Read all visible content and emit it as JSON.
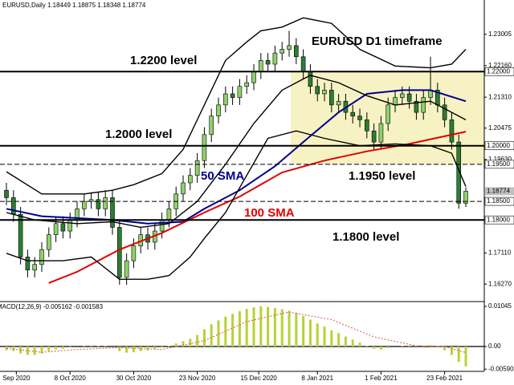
{
  "chart_data": [
    {
      "type": "candlestick",
      "title": "EURUSD,Daily  1.18449 1.18875 1.18348 1.18774",
      "bull_color": "#8fd16a",
      "bear_color": "#2e7d32",
      "candles": [
        [
          1.188,
          1.19,
          1.184,
          1.186
        ],
        [
          1.186,
          1.188,
          1.1795,
          1.1815
        ],
        [
          1.1815,
          1.1835,
          1.168,
          1.17
        ],
        [
          1.17,
          1.172,
          1.1645,
          1.1665
        ],
        [
          1.1665,
          1.17,
          1.1645,
          1.168
        ],
        [
          1.168,
          1.174,
          1.166,
          1.172
        ],
        [
          1.172,
          1.178,
          1.17,
          1.176
        ],
        [
          1.176,
          1.181,
          1.174,
          1.179
        ],
        [
          1.179,
          1.181,
          1.175,
          1.177
        ],
        [
          1.177,
          1.182,
          1.175,
          1.18
        ],
        [
          1.18,
          1.185,
          1.178,
          1.183
        ],
        [
          1.183,
          1.187,
          1.181,
          1.185
        ],
        [
          1.185,
          1.1875,
          1.183,
          1.1855
        ],
        [
          1.1855,
          1.1875,
          1.181,
          1.183
        ],
        [
          1.183,
          1.188,
          1.181,
          1.186
        ],
        [
          1.186,
          1.188,
          1.176,
          1.178
        ],
        [
          1.178,
          1.18,
          1.1625,
          1.1645
        ],
        [
          1.1645,
          1.171,
          1.1625,
          1.169
        ],
        [
          1.169,
          1.175,
          1.167,
          1.173
        ],
        [
          1.173,
          1.178,
          1.171,
          1.176
        ],
        [
          1.176,
          1.178,
          1.172,
          1.174
        ],
        [
          1.174,
          1.179,
          1.172,
          1.177
        ],
        [
          1.177,
          1.182,
          1.175,
          1.18
        ],
        [
          1.18,
          1.185,
          1.178,
          1.183
        ],
        [
          1.183,
          1.189,
          1.181,
          1.187
        ],
        [
          1.187,
          1.192,
          1.185,
          1.19
        ],
        [
          1.19,
          1.194,
          1.188,
          1.192
        ],
        [
          1.192,
          1.198,
          1.19,
          1.196
        ],
        [
          1.196,
          1.205,
          1.194,
          1.203
        ],
        [
          1.203,
          1.21,
          1.201,
          1.208
        ],
        [
          1.208,
          1.213,
          1.206,
          1.211
        ],
        [
          1.211,
          1.216,
          1.209,
          1.214
        ],
        [
          1.214,
          1.216,
          1.211,
          1.213
        ],
        [
          1.213,
          1.218,
          1.211,
          1.216
        ],
        [
          1.216,
          1.219,
          1.214,
          1.217
        ],
        [
          1.217,
          1.222,
          1.215,
          1.22
        ],
        [
          1.22,
          1.225,
          1.218,
          1.223
        ],
        [
          1.223,
          1.225,
          1.22,
          1.222
        ],
        [
          1.222,
          1.227,
          1.22,
          1.225
        ],
        [
          1.225,
          1.228,
          1.223,
          1.226
        ],
        [
          1.226,
          1.231,
          1.224,
          1.227
        ],
        [
          1.227,
          1.229,
          1.222,
          1.224
        ],
        [
          1.224,
          1.226,
          1.218,
          1.22
        ],
        [
          1.22,
          1.222,
          1.214,
          1.216
        ],
        [
          1.216,
          1.218,
          1.212,
          1.214
        ],
        [
          1.214,
          1.217,
          1.212,
          1.215
        ],
        [
          1.215,
          1.217,
          1.209,
          1.211
        ],
        [
          1.211,
          1.214,
          1.209,
          1.212
        ],
        [
          1.212,
          1.214,
          1.207,
          1.209
        ],
        [
          1.209,
          1.211,
          1.206,
          1.208
        ],
        [
          1.208,
          1.21,
          1.205,
          1.207
        ],
        [
          1.207,
          1.209,
          1.202,
          1.204
        ],
        [
          1.204,
          1.206,
          1.199,
          1.201
        ],
        [
          1.201,
          1.208,
          1.199,
          1.206
        ],
        [
          1.206,
          1.213,
          1.204,
          1.211
        ],
        [
          1.211,
          1.215,
          1.209,
          1.213
        ],
        [
          1.213,
          1.216,
          1.211,
          1.214
        ],
        [
          1.214,
          1.216,
          1.21,
          1.212
        ],
        [
          1.212,
          1.214,
          1.207,
          1.209
        ],
        [
          1.209,
          1.215,
          1.207,
          1.213
        ],
        [
          1.213,
          1.224,
          1.211,
          1.215
        ],
        [
          1.215,
          1.217,
          1.209,
          1.211
        ],
        [
          1.211,
          1.213,
          1.205,
          1.207
        ],
        [
          1.207,
          1.209,
          1.199,
          1.201
        ],
        [
          1.201,
          1.203,
          1.183,
          1.1845
        ],
        [
          1.18449,
          1.18875,
          1.18348,
          1.18774
        ]
      ],
      "series": [
        {
          "name": "50 SMA",
          "color": "#00008b",
          "x": [
            0,
            5,
            10,
            15,
            20,
            25,
            28,
            33,
            38,
            42,
            47,
            51,
            56,
            60,
            65
          ],
          "values": [
            1.183,
            1.181,
            1.1805,
            1.18,
            1.179,
            1.1795,
            1.183,
            1.188,
            1.1945,
            1.201,
            1.209,
            1.214,
            1.215,
            1.215,
            1.212
          ]
        },
        {
          "name": "100 SMA",
          "color": "#e00000",
          "x": [
            6,
            10,
            16,
            22,
            28,
            33,
            39,
            45,
            51,
            57,
            65
          ],
          "values": [
            1.163,
            1.166,
            1.172,
            1.1765,
            1.182,
            1.1863,
            1.1928,
            1.196,
            1.1985,
            1.2005,
            1.2038
          ]
        },
        {
          "color": "#000000",
          "x": [
            0,
            5,
            11,
            15,
            18,
            22,
            25,
            28,
            31,
            34,
            36,
            39,
            42,
            46,
            50,
            55,
            60,
            63,
            65
          ],
          "values": [
            1.193,
            1.187,
            1.187,
            1.188,
            1.1895,
            1.1925,
            1.199,
            1.211,
            1.223,
            1.228,
            1.231,
            1.232,
            1.2345,
            1.233,
            1.226,
            1.2215,
            1.221,
            1.222,
            1.226
          ]
        },
        {
          "color": "#000000",
          "x": [
            0,
            4,
            10,
            15,
            19,
            23,
            27,
            31,
            35,
            39,
            43,
            47,
            51,
            55,
            60,
            65
          ],
          "values": [
            1.182,
            1.18,
            1.179,
            1.1795,
            1.178,
            1.179,
            1.185,
            1.195,
            1.206,
            1.215,
            1.219,
            1.217,
            1.2135,
            1.211,
            1.212,
            1.207
          ]
        },
        {
          "color": "#000000",
          "x": [
            0,
            3,
            8,
            12,
            16,
            20,
            23,
            26,
            28,
            31,
            34,
            37,
            41,
            45,
            50,
            55,
            60,
            63,
            65
          ],
          "values": [
            1.171,
            1.169,
            1.169,
            1.17,
            1.164,
            1.164,
            1.165,
            1.17,
            1.175,
            1.182,
            1.192,
            1.202,
            1.204,
            1.202,
            1.2,
            1.2005,
            1.2,
            1.198,
            1.189
          ]
        }
      ],
      "levels": [
        {
          "value": 1.22,
          "label": "1.22000",
          "style": "solid"
        },
        {
          "value": 1.2,
          "label": "1.20000",
          "style": "solid"
        },
        {
          "value": 1.195,
          "label": "1.19500",
          "style": "dashed"
        },
        {
          "value": 1.185,
          "label": "1.18500",
          "style": "dashed"
        },
        {
          "value": 1.18,
          "label": "1.18000",
          "style": "solid"
        }
      ],
      "annotations": [
        "1.2200 level",
        "1.2000 level",
        "1.1950 level",
        "1.1800 level",
        "EURUSD D1 timeframe"
      ],
      "xlim": [
        -0.91,
        67.61
      ],
      "ylim": [
        1.1582,
        1.2393
      ],
      "yticks": [
        {
          "value": 1.23005,
          "label": "1.23005"
        },
        {
          "value": 1.2216,
          "label": "1.22160"
        },
        {
          "value": 1.2131,
          "label": "1.21310"
        },
        {
          "value": 1.20475,
          "label": "1.20475"
        },
        {
          "value": 1.1963,
          "label": "1.19630"
        },
        {
          "value": 1.1711,
          "label": "1.17110"
        },
        {
          "value": 1.1627,
          "label": "1.16270"
        }
      ],
      "xticks": [
        {
          "value": 1.4,
          "label": "Sep 2020"
        },
        {
          "value": 9,
          "label": "8 Oct 2020"
        },
        {
          "value": 18,
          "label": "30 Oct 2020"
        },
        {
          "value": 27,
          "label": "23 Nov 2020"
        },
        {
          "value": 35.7,
          "label": "15 Dec 2020"
        },
        {
          "value": 44,
          "label": "8 Jan 2021"
        },
        {
          "value": 53,
          "label": "1 Feb 2021"
        },
        {
          "value": 62,
          "label": "23 Feb 2021"
        }
      ]
    },
    {
      "type": "bar",
      "title": "MACD(12,26,9) -0.005162 -0.001583",
      "color": "#b5d335",
      "values": [
        -0.001,
        -0.0012,
        -0.0018,
        -0.0022,
        -0.0022,
        -0.0018,
        -0.0012,
        -0.0008,
        -0.0006,
        -0.0003,
        0.0,
        0.0002,
        0.0003,
        0.0002,
        0.0002,
        0.0,
        -0.0012,
        -0.0016,
        -0.0015,
        -0.0012,
        -0.001,
        -0.0007,
        -0.0003,
        0.0002,
        0.0008,
        0.0014,
        0.002,
        0.003,
        0.0045,
        0.0058,
        0.0068,
        0.0078,
        0.0085,
        0.0092,
        0.0098,
        0.0102,
        0.0105,
        0.0103,
        0.01,
        0.0097,
        0.0093,
        0.0088,
        0.008,
        0.007,
        0.006,
        0.0052,
        0.0042,
        0.0035,
        0.0026,
        0.0018,
        0.001,
        0.0002,
        -0.0006,
        -0.0008,
        -0.0004,
        0.0,
        0.0002,
        0.0003,
        0.0001,
        0.0002,
        0.0004,
        0.0001,
        -0.001,
        -0.0022,
        -0.004,
        -0.005162
      ],
      "signal": {
        "color": "#e05050",
        "x": [
          0,
          5,
          10,
          16,
          22,
          28,
          34,
          40,
          46,
          52,
          58,
          62,
          65
        ],
        "values": [
          -0.0005,
          -0.0015,
          -0.0008,
          -0.0003,
          -0.0008,
          0.0015,
          0.0065,
          0.009,
          0.007,
          0.0025,
          0.0002,
          0.0,
          -0.001583
        ]
      },
      "xlim": [
        -0.91,
        67.61
      ],
      "ylim": [
        -0.00627,
        0.01129
      ],
      "yticks": [
        {
          "value": 0.01045,
          "label": "0.01045"
        },
        {
          "value": 0,
          "label": "0.00"
        },
        {
          "value": -0.0059,
          "label": "-0.00590"
        }
      ]
    }
  ]
}
